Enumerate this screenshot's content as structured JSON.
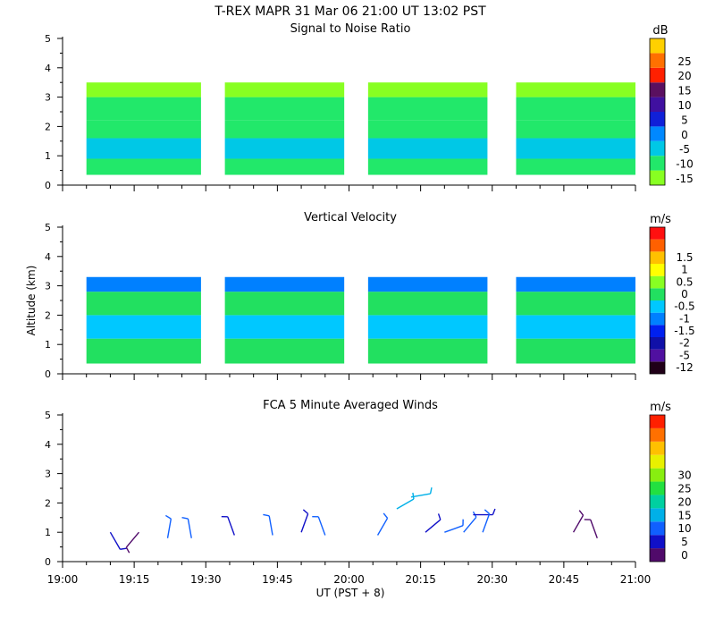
{
  "header": {
    "main_title": "T-REX   MAPR 31 Mar 06   21:00 UT   13:02   PST"
  },
  "xaxis": {
    "label": "UT  (PST + 8)",
    "ticks": [
      "19:00",
      "19:15",
      "19:30",
      "19:45",
      "20:00",
      "20:15",
      "20:30",
      "20:45",
      "21:00"
    ]
  },
  "y_axis_label": "Altitude (km)",
  "colors": {
    "snr": [
      "#88ff22",
      "#22e86a",
      "#00c8e6",
      "#0088ff",
      "#1020d8",
      "#4010a0",
      "#5a1060",
      "#ff2000",
      "#ff7000",
      "#ffd000"
    ],
    "vv": [
      "#200018",
      "#5010a0",
      "#1010a8",
      "#0020f0",
      "#0080ff",
      "#00c8ff",
      "#22e060",
      "#88ff22",
      "#ffff00",
      "#ffc000",
      "#ff6000",
      "#ff1010"
    ],
    "wind": [
      "#500a6a",
      "#1010c8",
      "#1060ff",
      "#00b0e8",
      "#00d0a0",
      "#22e040",
      "#88ee10",
      "#e8f000",
      "#ffc000",
      "#ff7000",
      "#ff2000"
    ]
  },
  "chart_data": [
    {
      "type": "heatmap",
      "title": "Signal to Noise Ratio",
      "ylabel": "",
      "units": "dB",
      "ylim": [
        0,
        5
      ],
      "yticks": [
        "0",
        "1",
        "2",
        "3",
        "4",
        "5"
      ],
      "xlim_minutes": [
        0,
        120
      ],
      "colorbar_labels": [
        "-15",
        "-10",
        "-5",
        "0",
        "5",
        "10",
        "15",
        "20",
        "25"
      ],
      "data_segments": [
        [
          5,
          29
        ],
        [
          34,
          59
        ],
        [
          64,
          89
        ],
        [
          95,
          120
        ]
      ],
      "profile": [
        {
          "top": 0.9,
          "value": -10
        },
        {
          "top": 1.6,
          "value": -5
        },
        {
          "top": 2.2,
          "value": -10
        },
        {
          "top": 3.0,
          "value": -10
        },
        {
          "top": 3.5,
          "value": -15
        }
      ]
    },
    {
      "type": "heatmap",
      "title": "Vertical Velocity",
      "ylabel": "Altitude (km)",
      "units": "m/s",
      "ylim": [
        0,
        5
      ],
      "yticks": [
        "0",
        "1",
        "2",
        "3",
        "4",
        "5"
      ],
      "xlim_minutes": [
        0,
        120
      ],
      "colorbar_labels": [
        "-12",
        "-5",
        "-2",
        "-1.5",
        "-1",
        "-0.5",
        "0",
        "0.5",
        "1",
        "1.5"
      ],
      "data_segments": [
        [
          5,
          29
        ],
        [
          34,
          59
        ],
        [
          64,
          89
        ],
        [
          95,
          120
        ]
      ],
      "profile": [
        {
          "top": 1.2,
          "value": 0
        },
        {
          "top": 2.0,
          "value": -0.5
        },
        {
          "top": 2.8,
          "value": 0
        },
        {
          "top": 3.3,
          "value": -1
        }
      ]
    },
    {
      "type": "scatter",
      "title": "FCA 5 Minute Averaged Winds",
      "ylabel": "",
      "units": "m/s",
      "ylim": [
        0,
        5
      ],
      "yticks": [
        "0",
        "1",
        "2",
        "3",
        "4",
        "5"
      ],
      "xlim_minutes": [
        0,
        120
      ],
      "colorbar_labels": [
        "0",
        "5",
        "10",
        "15",
        "20",
        "25",
        "30"
      ],
      "barbs": [
        {
          "t": 10,
          "alt": 1.0,
          "speed": 6,
          "dir": 30
        },
        {
          "t": 16,
          "alt": 1.0,
          "speed": 3,
          "dir": 320
        },
        {
          "t": 22,
          "alt": 0.8,
          "speed": 14,
          "dir": 170
        },
        {
          "t": 27,
          "alt": 0.8,
          "speed": 12,
          "dir": 190
        },
        {
          "t": 36,
          "alt": 0.9,
          "speed": 6,
          "dir": 200
        },
        {
          "t": 44,
          "alt": 0.9,
          "speed": 10,
          "dir": 190
        },
        {
          "t": 50,
          "alt": 1.0,
          "speed": 8,
          "dir": 160
        },
        {
          "t": 55,
          "alt": 0.9,
          "speed": 12,
          "dir": 200
        },
        {
          "t": 66,
          "alt": 0.9,
          "speed": 10,
          "dir": 150
        },
        {
          "t": 70,
          "alt": 1.8,
          "speed": 16,
          "dir": 120
        },
        {
          "t": 73,
          "alt": 2.2,
          "speed": 18,
          "dir": 100
        },
        {
          "t": 76,
          "alt": 1.0,
          "speed": 6,
          "dir": 130
        },
        {
          "t": 80,
          "alt": 1.0,
          "speed": 14,
          "dir": 110
        },
        {
          "t": 84,
          "alt": 1.0,
          "speed": 12,
          "dir": 140
        },
        {
          "t": 86,
          "alt": 1.6,
          "speed": 5,
          "dir": 90
        },
        {
          "t": 88,
          "alt": 1.0,
          "speed": 10,
          "dir": 160
        },
        {
          "t": 107,
          "alt": 1.0,
          "speed": 4,
          "dir": 150
        },
        {
          "t": 112,
          "alt": 0.8,
          "speed": 3,
          "dir": 200
        }
      ]
    }
  ]
}
